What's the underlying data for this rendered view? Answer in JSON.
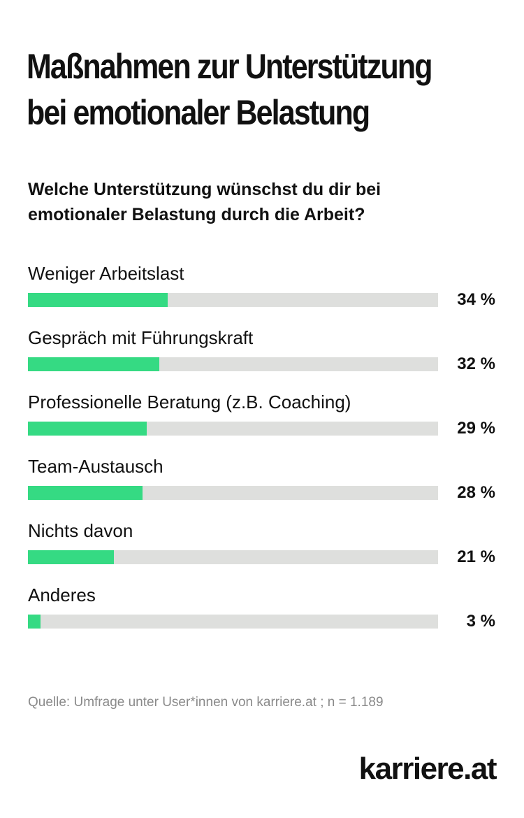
{
  "title_lines": [
    "Maßnahmen zur Unterstützung",
    "bei emotionaler Belastung"
  ],
  "question_lines": [
    "Welche Unterstützung wünschst du dir bei",
    "emotionaler Belastung durch die Arbeit?"
  ],
  "colors": {
    "bar_fill": "#35da83",
    "bar_track": "#dedfdd",
    "text": "#111111",
    "source_text": "#8a8a8a"
  },
  "chart_data": {
    "type": "bar",
    "orientation": "horizontal",
    "categories": [
      "Weniger Arbeitslast",
      "Gespräch mit Führungskraft",
      "Professionelle Beratung (z.B. Coaching)",
      "Team-Austausch",
      "Nichts davon",
      "Anderes"
    ],
    "values": [
      34,
      32,
      29,
      28,
      21,
      3
    ],
    "value_labels": [
      "34 %",
      "32 %",
      "29 %",
      "28 %",
      "21 %",
      "3 %"
    ],
    "xlim": [
      0,
      100
    ],
    "grid": false,
    "legend": "none"
  },
  "source": "Quelle: Umfrage unter User*innen von karriere.at ; n = 1.189",
  "logo_text": "karriere.at"
}
